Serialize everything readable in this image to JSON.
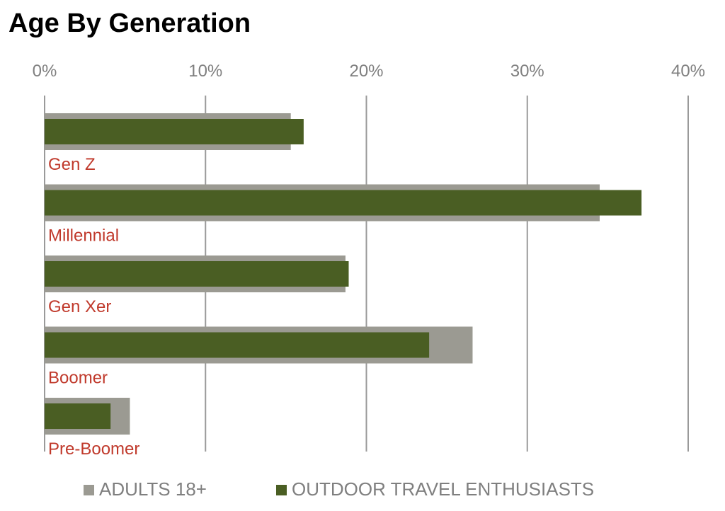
{
  "chart_data": {
    "type": "bar",
    "orientation": "horizontal",
    "title": "Age By Generation",
    "categories": [
      "Gen Z",
      "Millennial",
      "Gen Xer",
      "Boomer",
      "Pre-Boomer"
    ],
    "series": [
      {
        "name": "ADULTS 18+",
        "values": [
          15.3,
          34.5,
          18.7,
          26.6,
          5.3
        ]
      },
      {
        "name": "OUTDOOR TRAVEL ENTHUSIASTS",
        "values": [
          16.1,
          37.1,
          18.9,
          23.9,
          4.1
        ]
      }
    ],
    "xlim": [
      0,
      40
    ],
    "x_ticks": [
      "0%",
      "10%",
      "20%",
      "30%",
      "40%"
    ],
    "x_axis_position": "top",
    "grid": true,
    "legend_position": "bottom",
    "colors": {
      "ADULTS 18+": "#9b9a92",
      "OUTDOOR TRAVEL ENTHUSIASTS": "#4a5e23",
      "category_label": "#c0392b",
      "gridline": "#9a9a9a",
      "tick_label": "#7f7f7f"
    }
  }
}
